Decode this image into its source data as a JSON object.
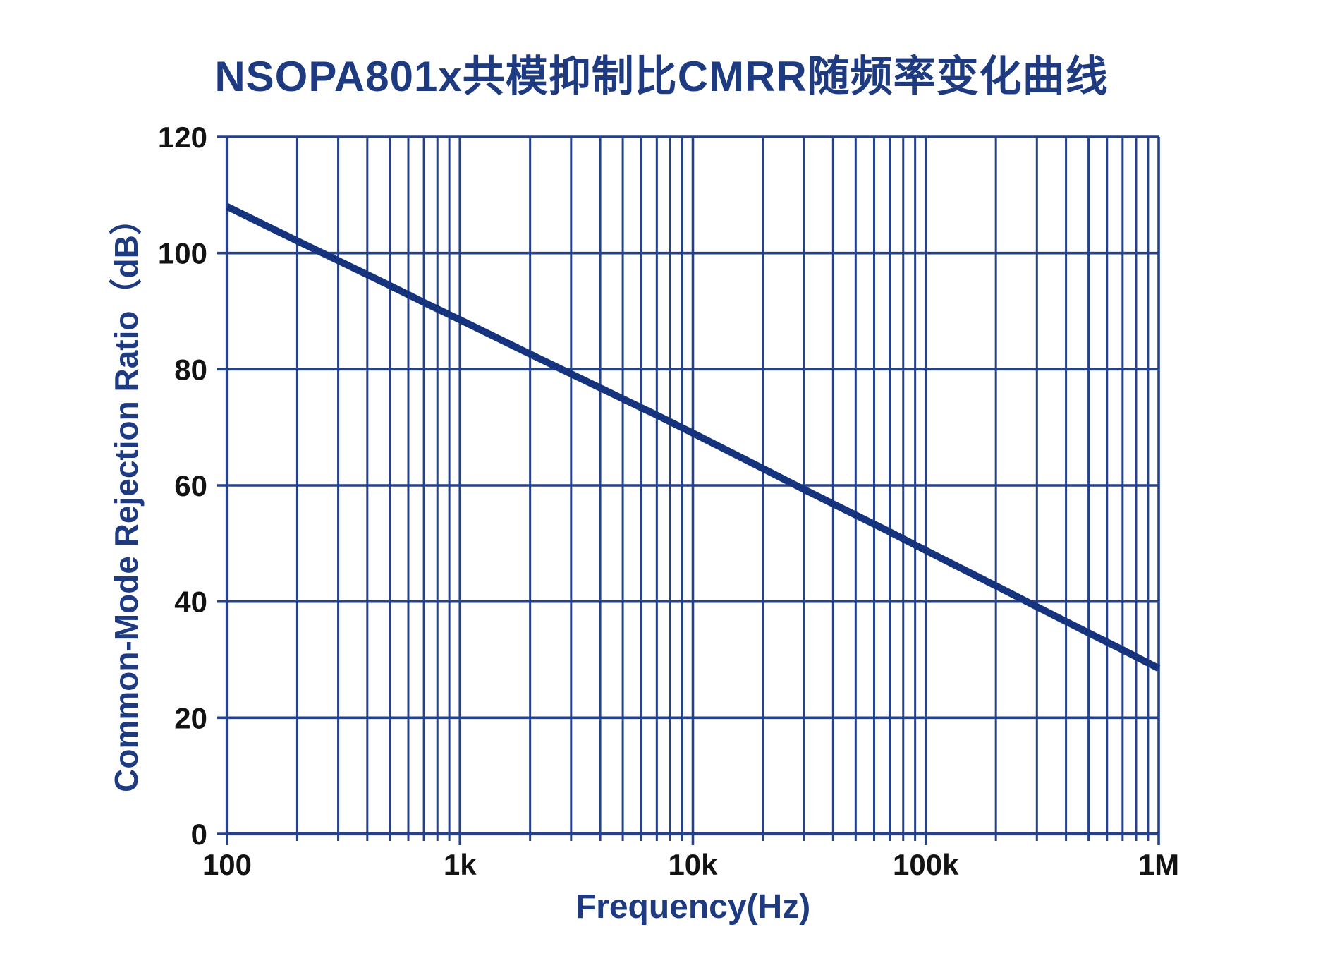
{
  "colors": {
    "background": "#ffffff",
    "grid": "#24418a",
    "axis": "#24418a",
    "curve": "#16337e",
    "heading_text": "#1e3a80",
    "tick_text": "#131313"
  },
  "chart_data": {
    "type": "line",
    "title": "NSOPA801x共模抑制比CMRR随频率变化曲线",
    "xlabel": "Frequency(Hz)",
    "ylabel": "Common-Mode Rejection Ratio（dB）",
    "x_scale": "log",
    "x_range": [
      100,
      1000000
    ],
    "y_range": [
      0,
      120
    ],
    "grid": {
      "x_major": true,
      "x_log_minor": true,
      "y_major": true,
      "legend": "none"
    },
    "x_ticks": [
      {
        "v": 100,
        "label": "100"
      },
      {
        "v": 1000,
        "label": "1k"
      },
      {
        "v": 10000,
        "label": "10k"
      },
      {
        "v": 100000,
        "label": "100k"
      },
      {
        "v": 1000000,
        "label": "1M"
      }
    ],
    "y_ticks": [
      {
        "v": 0,
        "label": "0"
      },
      {
        "v": 20,
        "label": "20"
      },
      {
        "v": 40,
        "label": "40"
      },
      {
        "v": 60,
        "label": "60"
      },
      {
        "v": 80,
        "label": "80"
      },
      {
        "v": 100,
        "label": "100"
      },
      {
        "v": 120,
        "label": "120"
      }
    ],
    "series": [
      {
        "name": "CMRR",
        "x": [
          100,
          200,
          300,
          500,
          700,
          1000,
          2000,
          3000,
          5000,
          7000,
          10000,
          20000,
          30000,
          50000,
          70000,
          100000,
          200000,
          300000,
          500000,
          700000,
          1000000
        ],
        "y": [
          108,
          102.1,
          98.7,
          94.4,
          91.5,
          88.5,
          82.6,
          79.2,
          74.9,
          72.1,
          69,
          62.9,
          59.3,
          54.9,
          52,
          48.8,
          42.7,
          39.1,
          34.6,
          31.7,
          28.5
        ]
      }
    ]
  }
}
